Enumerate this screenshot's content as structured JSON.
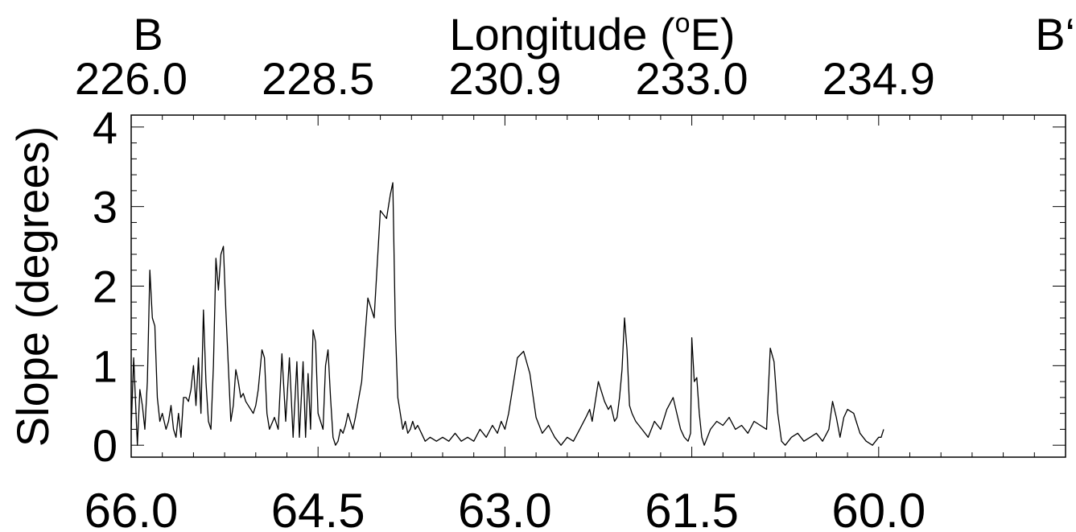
{
  "chart_data": {
    "type": "line",
    "top_left_label": "B",
    "top_right_label": "B‘",
    "title_top_prefix": "Longitude (",
    "title_top_degree": "o",
    "title_top_suffix": "E)",
    "ylabel": "Slope (degrees)",
    "xlabel": "",
    "xlim": [
      66.0,
      58.5
    ],
    "ylim": [
      -0.15,
      4.15
    ],
    "bottom_ticks": [
      {
        "value": 66.0,
        "label": "66.0"
      },
      {
        "value": 64.5,
        "label": "64.5"
      },
      {
        "value": 63.0,
        "label": "63.0"
      },
      {
        "value": 61.5,
        "label": "61.5"
      },
      {
        "value": 60.0,
        "label": "60.0"
      }
    ],
    "top_ticks": [
      {
        "value": 66.0,
        "label": "226.0"
      },
      {
        "value": 64.5,
        "label": "228.5"
      },
      {
        "value": 63.0,
        "label": "230.9"
      },
      {
        "value": 61.5,
        "label": "233.0"
      },
      {
        "value": 60.0,
        "label": "234.9"
      }
    ],
    "y_ticks": [
      {
        "value": 0,
        "label": "0"
      },
      {
        "value": 1,
        "label": "1"
      },
      {
        "value": 2,
        "label": "2"
      },
      {
        "value": 3,
        "label": "3"
      },
      {
        "value": 4,
        "label": "4"
      }
    ],
    "series": [
      {
        "line_color": "#000000",
        "x": [
          66.0,
          65.98,
          65.95,
          65.93,
          65.91,
          65.89,
          65.87,
          65.85,
          65.83,
          65.81,
          65.79,
          65.77,
          65.75,
          65.72,
          65.7,
          65.68,
          65.66,
          65.64,
          65.62,
          65.6,
          65.58,
          65.56,
          65.54,
          65.52,
          65.5,
          65.48,
          65.46,
          65.44,
          65.42,
          65.4,
          65.38,
          65.36,
          65.34,
          65.32,
          65.3,
          65.28,
          65.26,
          65.24,
          65.22,
          65.2,
          65.18,
          65.16,
          65.14,
          65.12,
          65.1,
          65.08,
          65.06,
          65.04,
          65.02,
          65.0,
          64.98,
          64.95,
          64.93,
          64.91,
          64.89,
          64.85,
          64.82,
          64.79,
          64.76,
          64.73,
          64.7,
          64.67,
          64.65,
          64.62,
          64.6,
          64.58,
          64.56,
          64.54,
          64.52,
          64.5,
          64.48,
          64.46,
          64.44,
          64.42,
          64.4,
          64.38,
          64.36,
          64.34,
          64.32,
          64.3,
          64.28,
          64.26,
          64.24,
          64.22,
          64.2,
          64.15,
          64.1,
          64.05,
          64.0,
          63.95,
          63.92,
          63.9,
          63.88,
          63.86,
          63.84,
          63.82,
          63.8,
          63.78,
          63.76,
          63.74,
          63.72,
          63.7,
          63.67,
          63.64,
          63.6,
          63.55,
          63.5,
          63.45,
          63.4,
          63.35,
          63.3,
          63.25,
          63.2,
          63.15,
          63.1,
          63.06,
          63.03,
          63.0,
          62.97,
          62.94,
          62.9,
          62.85,
          62.8,
          62.75,
          62.7,
          62.65,
          62.6,
          62.55,
          62.5,
          62.45,
          62.4,
          62.35,
          62.32,
          62.3,
          62.28,
          62.25,
          62.2,
          62.17,
          62.15,
          62.12,
          62.1,
          62.08,
          62.06,
          62.04,
          62.02,
          62.0,
          61.98,
          61.95,
          61.9,
          61.85,
          61.8,
          61.75,
          61.7,
          61.65,
          61.62,
          61.59,
          61.56,
          61.53,
          61.51,
          61.5,
          61.48,
          61.46,
          61.44,
          61.42,
          61.4,
          61.35,
          61.3,
          61.25,
          61.2,
          61.15,
          61.1,
          61.05,
          61.0,
          60.95,
          60.9,
          60.87,
          60.84,
          60.81,
          60.78,
          60.75,
          60.7,
          60.65,
          60.6,
          60.55,
          60.5,
          60.45,
          60.4,
          60.37,
          60.34,
          60.31,
          60.28,
          60.25,
          60.2,
          60.18,
          60.15,
          60.1,
          60.05,
          60.0,
          59.98,
          59.96
        ],
        "y": [
          0.2,
          1.1,
          0.0,
          0.7,
          0.5,
          0.2,
          0.8,
          2.2,
          1.6,
          1.5,
          0.6,
          0.3,
          0.4,
          0.2,
          0.3,
          0.5,
          0.2,
          0.1,
          0.4,
          0.1,
          0.6,
          0.6,
          0.55,
          0.7,
          1.0,
          0.5,
          1.1,
          0.4,
          1.7,
          0.8,
          0.3,
          0.2,
          1.0,
          2.35,
          1.95,
          2.4,
          2.5,
          1.7,
          1.0,
          0.3,
          0.5,
          0.95,
          0.8,
          0.6,
          0.65,
          0.55,
          0.5,
          0.45,
          0.4,
          0.5,
          0.7,
          1.2,
          1.1,
          0.4,
          0.2,
          0.35,
          0.2,
          1.15,
          0.3,
          1.1,
          0.1,
          1.05,
          0.1,
          1.05,
          0.1,
          0.9,
          0.2,
          1.45,
          1.3,
          0.4,
          0.3,
          0.2,
          1.0,
          1.2,
          0.6,
          0.1,
          0.0,
          0.05,
          0.2,
          0.15,
          0.25,
          0.4,
          0.3,
          0.2,
          0.35,
          0.8,
          1.85,
          1.6,
          2.95,
          2.85,
          3.15,
          3.3,
          1.5,
          0.6,
          0.4,
          0.2,
          0.3,
          0.15,
          0.2,
          0.3,
          0.2,
          0.25,
          0.15,
          0.05,
          0.1,
          0.05,
          0.1,
          0.05,
          0.15,
          0.05,
          0.1,
          0.05,
          0.2,
          0.1,
          0.25,
          0.15,
          0.3,
          0.2,
          0.4,
          0.7,
          1.1,
          1.18,
          0.9,
          0.35,
          0.15,
          0.25,
          0.1,
          0.0,
          0.1,
          0.05,
          0.2,
          0.35,
          0.45,
          0.3,
          0.5,
          0.8,
          0.55,
          0.45,
          0.5,
          0.3,
          0.35,
          0.6,
          0.95,
          1.6,
          1.2,
          0.5,
          0.4,
          0.3,
          0.2,
          0.1,
          0.3,
          0.2,
          0.45,
          0.6,
          0.4,
          0.2,
          0.1,
          0.05,
          0.15,
          1.35,
          0.8,
          0.85,
          0.4,
          0.1,
          0.0,
          0.2,
          0.3,
          0.25,
          0.35,
          0.2,
          0.25,
          0.15,
          0.3,
          0.25,
          0.2,
          1.22,
          1.05,
          0.4,
          0.05,
          0.0,
          0.1,
          0.15,
          0.05,
          0.1,
          0.15,
          0.05,
          0.2,
          0.55,
          0.35,
          0.1,
          0.35,
          0.45,
          0.4,
          0.3,
          0.15,
          0.05,
          0.0,
          0.1,
          0.1,
          0.2
        ]
      }
    ]
  }
}
